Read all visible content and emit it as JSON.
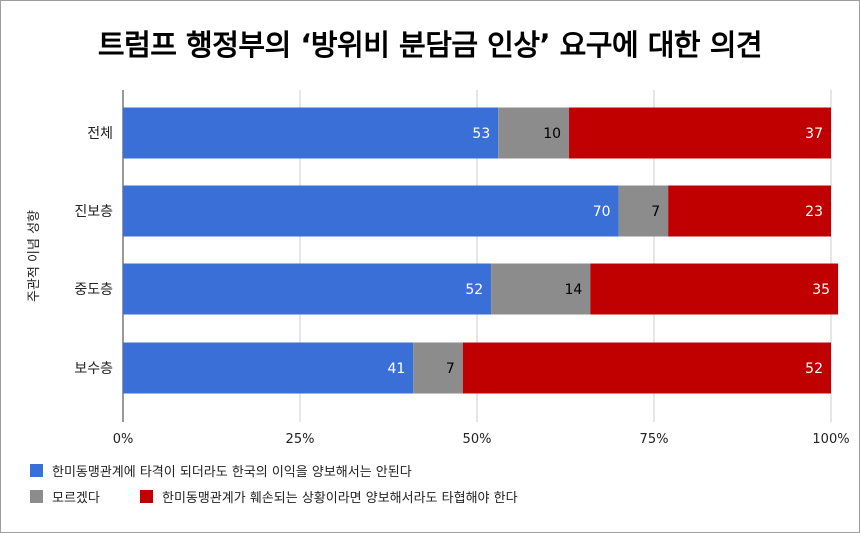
{
  "title": "트럼프 행정부의 ‘방위비 분담금 인상’ 요구에 대한 의견",
  "chart_data": {
    "type": "bar",
    "orientation": "horizontal",
    "stacked": true,
    "categories": [
      "전체",
      "진보층",
      "중도층",
      "보수층"
    ],
    "ylabel": "주관적 이념 성향",
    "xlim": [
      0,
      100
    ],
    "xticks": [
      "0%",
      "25%",
      "50%",
      "75%",
      "100%"
    ],
    "series": [
      {
        "name": "한미동맹관계에 타격이 되더라도 한국의 이익을 양보해서는 안된다",
        "color": "#3a6fd8",
        "label_color": "#ffffff",
        "values": [
          53,
          70,
          52,
          41
        ]
      },
      {
        "name": "모르겠다",
        "color": "#8c8c8c",
        "label_color": "#000000",
        "values": [
          10,
          7,
          14,
          7
        ]
      },
      {
        "name": "한미동맹관계가 훼손되는 상황이라면 양보해서라도 타협해야 한다",
        "color": "#c00000",
        "label_color": "#ffffff",
        "values": [
          37,
          23,
          35,
          52
        ]
      }
    ],
    "grid": true,
    "legend_position": "bottom-left"
  }
}
